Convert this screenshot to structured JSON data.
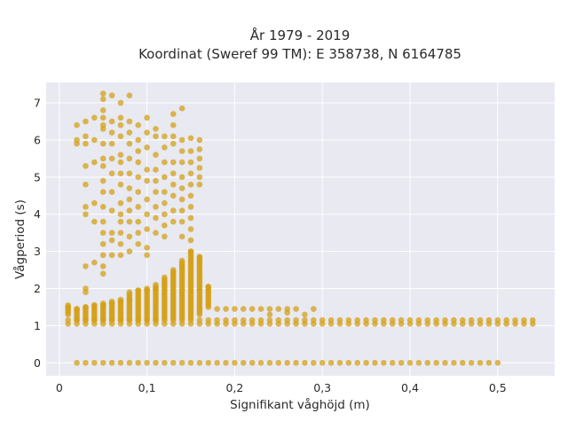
{
  "chart_data": {
    "type": "scatter",
    "title_line1": "År 1979 - 2019",
    "title_line2": "Koordinat (Sweref 99 TM): E 358738, N 6164785",
    "xlabel": "Signifikant våghöjd (m)",
    "ylabel": "Vågperiod (s)",
    "xlim": [
      -0.015,
      0.565
    ],
    "ylim": [
      -0.35,
      7.55
    ],
    "xticks": [
      0,
      0.1,
      0.2,
      0.3,
      0.4,
      0.5
    ],
    "xtick_labels": [
      "0",
      "0,1",
      "0,2",
      "0,3",
      "0,4",
      "0,5"
    ],
    "yticks": [
      0,
      1,
      2,
      3,
      4,
      5,
      6,
      7
    ],
    "ytick_labels": [
      "0",
      "1",
      "2",
      "3",
      "4",
      "5",
      "6",
      "7"
    ],
    "grid": true,
    "background": "#e8e9f1",
    "marker_color": "#d4a017",
    "series": [
      {
        "band": "zero-period",
        "x_step": 0.01,
        "x_start": 0.02,
        "x_end": 0.5,
        "y": 0
      },
      {
        "band": "short-period",
        "x_step": 0.01,
        "x_start": 0.01,
        "x_end": 0.54,
        "y_min": 1.05,
        "y_max": 1.15
      },
      {
        "band": "upper-short-period",
        "points": [
          [
            0.01,
            1.5
          ],
          [
            0.02,
            1.45
          ],
          [
            0.03,
            1.5
          ],
          [
            0.04,
            1.55
          ],
          [
            0.05,
            1.55
          ],
          [
            0.06,
            1.6
          ],
          [
            0.07,
            1.65
          ],
          [
            0.08,
            1.7
          ],
          [
            0.09,
            1.95
          ],
          [
            0.1,
            1.95
          ],
          [
            0.11,
            2.0
          ],
          [
            0.12,
            2.1
          ],
          [
            0.13,
            2.4
          ],
          [
            0.14,
            2.6
          ],
          [
            0.15,
            3.0
          ],
          [
            0.16,
            2.85
          ],
          [
            0.17,
            2.05
          ],
          [
            0.18,
            1.45
          ],
          [
            0.19,
            1.45
          ],
          [
            0.2,
            1.45
          ],
          [
            0.21,
            1.45
          ],
          [
            0.22,
            1.45
          ],
          [
            0.23,
            1.45
          ],
          [
            0.24,
            1.45
          ],
          [
            0.25,
            1.45
          ],
          [
            0.26,
            1.45
          ],
          [
            0.27,
            1.45
          ],
          [
            0.29,
            1.45
          ],
          [
            0.24,
            1.3
          ],
          [
            0.26,
            1.35
          ],
          [
            0.28,
            1.3
          ]
        ]
      },
      {
        "band": "swell",
        "points": [
          [
            0.02,
            6.4
          ],
          [
            0.02,
            6.0
          ],
          [
            0.02,
            5.9
          ],
          [
            0.03,
            6.5
          ],
          [
            0.03,
            6.1
          ],
          [
            0.03,
            5.9
          ],
          [
            0.03,
            5.3
          ],
          [
            0.03,
            4.8
          ],
          [
            0.03,
            4.2
          ],
          [
            0.03,
            4.0
          ],
          [
            0.03,
            2.6
          ],
          [
            0.03,
            2.0
          ],
          [
            0.03,
            1.9
          ],
          [
            0.04,
            6.6
          ],
          [
            0.04,
            6.0
          ],
          [
            0.04,
            5.4
          ],
          [
            0.04,
            4.3
          ],
          [
            0.04,
            3.8
          ],
          [
            0.04,
            2.7
          ],
          [
            0.05,
            7.25
          ],
          [
            0.05,
            7.1
          ],
          [
            0.05,
            6.8
          ],
          [
            0.05,
            6.6
          ],
          [
            0.05,
            6.4
          ],
          [
            0.05,
            6.3
          ],
          [
            0.05,
            5.9
          ],
          [
            0.05,
            5.5
          ],
          [
            0.05,
            5.3
          ],
          [
            0.05,
            4.9
          ],
          [
            0.05,
            4.6
          ],
          [
            0.05,
            4.2
          ],
          [
            0.05,
            3.8
          ],
          [
            0.05,
            3.5
          ],
          [
            0.05,
            3.2
          ],
          [
            0.05,
            2.9
          ],
          [
            0.05,
            2.6
          ],
          [
            0.05,
            2.4
          ],
          [
            0.06,
            7.2
          ],
          [
            0.06,
            6.5
          ],
          [
            0.06,
            6.2
          ],
          [
            0.06,
            5.9
          ],
          [
            0.06,
            5.5
          ],
          [
            0.06,
            5.1
          ],
          [
            0.06,
            4.6
          ],
          [
            0.06,
            4.1
          ],
          [
            0.06,
            3.5
          ],
          [
            0.06,
            3.3
          ],
          [
            0.06,
            2.9
          ],
          [
            0.07,
            7.0
          ],
          [
            0.07,
            6.6
          ],
          [
            0.07,
            6.4
          ],
          [
            0.07,
            6.1
          ],
          [
            0.07,
            5.6
          ],
          [
            0.07,
            5.4
          ],
          [
            0.07,
            5.1
          ],
          [
            0.07,
            4.8
          ],
          [
            0.07,
            4.3
          ],
          [
            0.07,
            4.0
          ],
          [
            0.07,
            3.8
          ],
          [
            0.07,
            3.5
          ],
          [
            0.07,
            3.2
          ],
          [
            0.07,
            2.9
          ],
          [
            0.08,
            7.2
          ],
          [
            0.08,
            6.5
          ],
          [
            0.08,
            6.2
          ],
          [
            0.08,
            5.9
          ],
          [
            0.08,
            5.5
          ],
          [
            0.08,
            5.1
          ],
          [
            0.08,
            4.7
          ],
          [
            0.08,
            4.4
          ],
          [
            0.08,
            4.1
          ],
          [
            0.08,
            3.8
          ],
          [
            0.08,
            3.4
          ],
          [
            0.08,
            3.0
          ],
          [
            0.09,
            6.4
          ],
          [
            0.09,
            6.0
          ],
          [
            0.09,
            5.7
          ],
          [
            0.09,
            5.4
          ],
          [
            0.09,
            5.0
          ],
          [
            0.09,
            4.6
          ],
          [
            0.09,
            4.2
          ],
          [
            0.09,
            3.8
          ],
          [
            0.09,
            3.5
          ],
          [
            0.09,
            3.2
          ],
          [
            0.1,
            6.6
          ],
          [
            0.1,
            6.2
          ],
          [
            0.1,
            5.8
          ],
          [
            0.1,
            5.2
          ],
          [
            0.1,
            4.9
          ],
          [
            0.1,
            4.4
          ],
          [
            0.1,
            4.0
          ],
          [
            0.1,
            3.6
          ],
          [
            0.1,
            3.1
          ],
          [
            0.1,
            2.9
          ],
          [
            0.11,
            6.3
          ],
          [
            0.11,
            6.1
          ],
          [
            0.11,
            5.6
          ],
          [
            0.11,
            5.2
          ],
          [
            0.11,
            4.9
          ],
          [
            0.11,
            4.6
          ],
          [
            0.11,
            4.2
          ],
          [
            0.11,
            3.9
          ],
          [
            0.11,
            3.5
          ],
          [
            0.12,
            6.1
          ],
          [
            0.12,
            5.8
          ],
          [
            0.12,
            5.4
          ],
          [
            0.12,
            5.0
          ],
          [
            0.12,
            4.6
          ],
          [
            0.12,
            4.3
          ],
          [
            0.12,
            4.0
          ],
          [
            0.12,
            3.7
          ],
          [
            0.12,
            3.4
          ],
          [
            0.13,
            6.7
          ],
          [
            0.13,
            6.4
          ],
          [
            0.13,
            6.1
          ],
          [
            0.13,
            5.9
          ],
          [
            0.13,
            5.4
          ],
          [
            0.13,
            5.1
          ],
          [
            0.13,
            4.8
          ],
          [
            0.13,
            4.5
          ],
          [
            0.13,
            4.1
          ],
          [
            0.13,
            3.8
          ],
          [
            0.14,
            6.85
          ],
          [
            0.14,
            6.0
          ],
          [
            0.14,
            5.7
          ],
          [
            0.14,
            5.4
          ],
          [
            0.14,
            5.0
          ],
          [
            0.14,
            4.7
          ],
          [
            0.14,
            4.4
          ],
          [
            0.14,
            4.1
          ],
          [
            0.14,
            3.8
          ],
          [
            0.14,
            3.4
          ],
          [
            0.15,
            6.05
          ],
          [
            0.15,
            5.7
          ],
          [
            0.15,
            5.4
          ],
          [
            0.15,
            5.1
          ],
          [
            0.15,
            4.8
          ],
          [
            0.15,
            4.5
          ],
          [
            0.15,
            4.2
          ],
          [
            0.15,
            3.9
          ],
          [
            0.15,
            3.6
          ],
          [
            0.15,
            3.3
          ],
          [
            0.16,
            6.0
          ],
          [
            0.16,
            5.75
          ],
          [
            0.16,
            5.5
          ],
          [
            0.16,
            5.25
          ],
          [
            0.16,
            5.0
          ],
          [
            0.16,
            4.8
          ]
        ]
      }
    ]
  }
}
